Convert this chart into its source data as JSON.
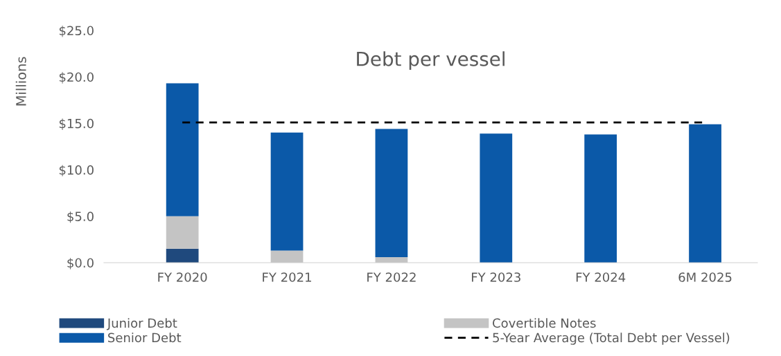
{
  "chart_data": {
    "type": "bar",
    "title": "Debt per vessel",
    "ylabel": "Millions",
    "categories": [
      "FY 2020",
      "FY 2021",
      "FY 2022",
      "FY 2023",
      "FY 2024",
      "6M 2025"
    ],
    "stacked": true,
    "series": [
      {
        "name": "Junior Debt",
        "color": "#1f497d",
        "values": [
          1.5,
          0,
          0,
          0,
          0,
          0
        ]
      },
      {
        "name": "Covertible Notes",
        "color": "#c4c4c4",
        "values": [
          3.5,
          1.3,
          0.6,
          0,
          0,
          0
        ]
      },
      {
        "name": "Senior Debt",
        "color": "#0b59a8",
        "values": [
          14.3,
          12.7,
          13.8,
          13.9,
          13.8,
          14.9
        ]
      },
      {
        "name": "5-Year Average (Total Debt per Vessel)",
        "type": "line",
        "color": "#000000",
        "line_style": "dashed",
        "values": [
          15.1,
          15.1,
          15.1,
          15.1,
          15.1,
          15.1
        ]
      }
    ],
    "ylim": [
      0,
      25
    ],
    "yticks": [
      {
        "value": 0,
        "label": "$0.0"
      },
      {
        "value": 5,
        "label": "$5.0"
      },
      {
        "value": 10,
        "label": "$10.0"
      },
      {
        "value": 15,
        "label": "$15.0"
      },
      {
        "value": 20,
        "label": "$20.0"
      },
      {
        "value": 25,
        "label": "$25.0"
      }
    ],
    "grid": false,
    "legend": "bottom"
  }
}
